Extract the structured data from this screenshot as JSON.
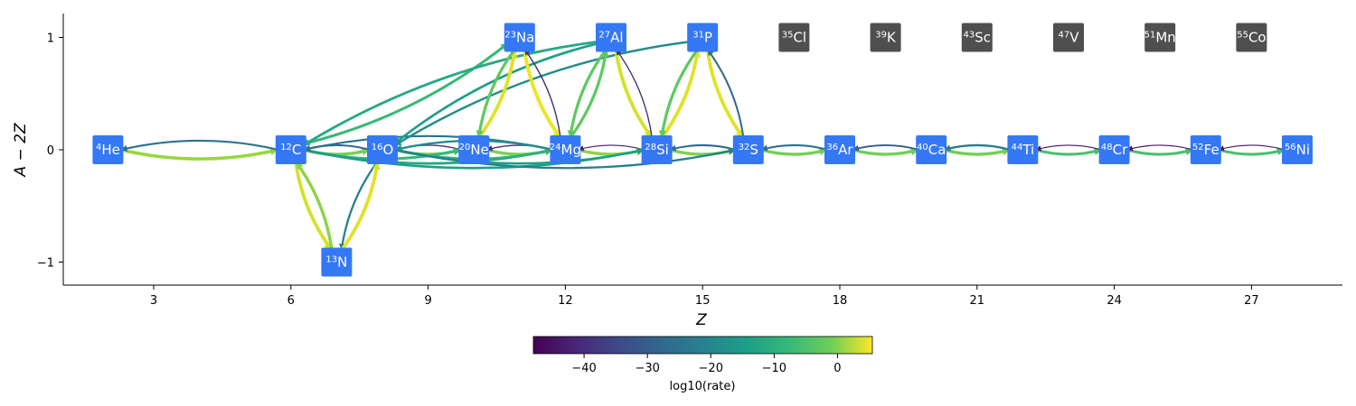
{
  "axes": {
    "xlabel": "Z",
    "ylabel": "A − 2Z",
    "xlim": [
      1.2,
      29
    ],
    "ylim": [
      -1.2,
      1.2
    ],
    "xticks": [
      "3",
      "6",
      "9",
      "12",
      "15",
      "18",
      "21",
      "24",
      "27"
    ],
    "yticks": [
      "1",
      "0",
      "−1"
    ]
  },
  "colorbar": {
    "label": "log10(rate)",
    "min": -48,
    "max": 5.5,
    "ticks": [
      "−40",
      "−30",
      "−20",
      "−10",
      "0"
    ],
    "colormap": "viridis"
  },
  "nodes": [
    {
      "id": "He4",
      "mass": "4",
      "symbol": "He",
      "Z": 2,
      "N_minus_Z": 0,
      "active": true
    },
    {
      "id": "C12",
      "mass": "12",
      "symbol": "C",
      "Z": 6,
      "N_minus_Z": 0,
      "active": true
    },
    {
      "id": "N13",
      "mass": "13",
      "symbol": "N",
      "Z": 7,
      "N_minus_Z": -1,
      "active": true
    },
    {
      "id": "O16",
      "mass": "16",
      "symbol": "O",
      "Z": 8,
      "N_minus_Z": 0,
      "active": true
    },
    {
      "id": "Ne20",
      "mass": "20",
      "symbol": "Ne",
      "Z": 10,
      "N_minus_Z": 0,
      "active": true
    },
    {
      "id": "Na23",
      "mass": "23",
      "symbol": "Na",
      "Z": 11,
      "N_minus_Z": 1,
      "active": true
    },
    {
      "id": "Mg24",
      "mass": "24",
      "symbol": "Mg",
      "Z": 12,
      "N_minus_Z": 0,
      "active": true
    },
    {
      "id": "Al27",
      "mass": "27",
      "symbol": "Al",
      "Z": 13,
      "N_minus_Z": 1,
      "active": true
    },
    {
      "id": "Si28",
      "mass": "28",
      "symbol": "Si",
      "Z": 14,
      "N_minus_Z": 0,
      "active": true
    },
    {
      "id": "P31",
      "mass": "31",
      "symbol": "P",
      "Z": 15,
      "N_minus_Z": 1,
      "active": true
    },
    {
      "id": "S32",
      "mass": "32",
      "symbol": "S",
      "Z": 16,
      "N_minus_Z": 0,
      "active": true
    },
    {
      "id": "Cl35",
      "mass": "35",
      "symbol": "Cl",
      "Z": 17,
      "N_minus_Z": 1,
      "active": false
    },
    {
      "id": "Ar36",
      "mass": "36",
      "symbol": "Ar",
      "Z": 18,
      "N_minus_Z": 0,
      "active": true
    },
    {
      "id": "K39",
      "mass": "39",
      "symbol": "K",
      "Z": 19,
      "N_minus_Z": 1,
      "active": false
    },
    {
      "id": "Ca40",
      "mass": "40",
      "symbol": "Ca",
      "Z": 20,
      "N_minus_Z": 0,
      "active": true
    },
    {
      "id": "Sc43",
      "mass": "43",
      "symbol": "Sc",
      "Z": 21,
      "N_minus_Z": 1,
      "active": false
    },
    {
      "id": "Ti44",
      "mass": "44",
      "symbol": "Ti",
      "Z": 22,
      "N_minus_Z": 0,
      "active": true
    },
    {
      "id": "V47",
      "mass": "47",
      "symbol": "V",
      "Z": 23,
      "N_minus_Z": 1,
      "active": false
    },
    {
      "id": "Cr48",
      "mass": "48",
      "symbol": "Cr",
      "Z": 24,
      "N_minus_Z": 0,
      "active": true
    },
    {
      "id": "Mn51",
      "mass": "51",
      "symbol": "Mn",
      "Z": 25,
      "N_minus_Z": 1,
      "active": false
    },
    {
      "id": "Fe52",
      "mass": "52",
      "symbol": "Fe",
      "Z": 26,
      "N_minus_Z": 0,
      "active": true
    },
    {
      "id": "Co55",
      "mass": "55",
      "symbol": "Co",
      "Z": 27,
      "N_minus_Z": 1,
      "active": false
    },
    {
      "id": "Ni56",
      "mass": "56",
      "symbol": "Ni",
      "Z": 28,
      "N_minus_Z": 0,
      "active": true
    }
  ],
  "edges": [
    {
      "from": "He4",
      "to": "C12",
      "rate": -3
    },
    {
      "from": "C12",
      "to": "He4",
      "rate": -28
    },
    {
      "from": "C12",
      "to": "O16",
      "rate": -6
    },
    {
      "from": "O16",
      "to": "C12",
      "rate": -30
    },
    {
      "from": "C12",
      "to": "N13",
      "rate": 2
    },
    {
      "from": "N13",
      "to": "C12",
      "rate": -4
    },
    {
      "from": "O16",
      "to": "N13",
      "rate": -25
    },
    {
      "from": "N13",
      "to": "O16",
      "rate": 3
    },
    {
      "from": "O16",
      "to": "Ne20",
      "rate": -6
    },
    {
      "from": "Ne20",
      "to": "O16",
      "rate": -40
    },
    {
      "from": "Ne20",
      "to": "Mg24",
      "rate": -5
    },
    {
      "from": "Mg24",
      "to": "Ne20",
      "rate": -42
    },
    {
      "from": "Mg24",
      "to": "Si28",
      "rate": -4
    },
    {
      "from": "Si28",
      "to": "Mg24",
      "rate": -44
    },
    {
      "from": "Si28",
      "to": "S32",
      "rate": -5
    },
    {
      "from": "S32",
      "to": "Si28",
      "rate": -30
    },
    {
      "from": "S32",
      "to": "Ar36",
      "rate": -6
    },
    {
      "from": "Ar36",
      "to": "S32",
      "rate": -28
    },
    {
      "from": "Ar36",
      "to": "Ca40",
      "rate": -6
    },
    {
      "from": "Ca40",
      "to": "Ar36",
      "rate": -32
    },
    {
      "from": "Ca40",
      "to": "Ti44",
      "rate": -6
    },
    {
      "from": "Ti44",
      "to": "Ca40",
      "rate": -25
    },
    {
      "from": "Ti44",
      "to": "Cr48",
      "rate": -10
    },
    {
      "from": "Cr48",
      "to": "Ti44",
      "rate": -45
    },
    {
      "from": "Cr48",
      "to": "Fe52",
      "rate": -10
    },
    {
      "from": "Fe52",
      "to": "Cr48",
      "rate": -45
    },
    {
      "from": "Fe52",
      "to": "Ni56",
      "rate": -10
    },
    {
      "from": "Ni56",
      "to": "Fe52",
      "rate": -45
    },
    {
      "from": "C12",
      "to": "Ne20",
      "rate": -12
    },
    {
      "from": "C12",
      "to": "Mg24",
      "rate": -16
    },
    {
      "from": "C12",
      "to": "Na23",
      "rate": -12
    },
    {
      "from": "C12",
      "to": "Si28",
      "rate": -18
    },
    {
      "from": "O16",
      "to": "Mg24",
      "rate": -14
    },
    {
      "from": "O16",
      "to": "Si28",
      "rate": -18
    },
    {
      "from": "O16",
      "to": "S32",
      "rate": -25
    },
    {
      "from": "Mg24",
      "to": "C12",
      "rate": -28
    },
    {
      "from": "Mg24",
      "to": "O16",
      "rate": -22
    },
    {
      "from": "Al27",
      "to": "C12",
      "rate": -16
    },
    {
      "from": "Al27",
      "to": "O16",
      "rate": -18
    },
    {
      "from": "P31",
      "to": "O16",
      "rate": -22
    },
    {
      "from": "Ne20",
      "to": "Na23",
      "rate": 3
    },
    {
      "from": "Na23",
      "to": "Ne20",
      "rate": -8
    },
    {
      "from": "Na23",
      "to": "Mg24",
      "rate": 4
    },
    {
      "from": "Mg24",
      "to": "Na23",
      "rate": -40
    },
    {
      "from": "Mg24",
      "to": "Al27",
      "rate": -8
    },
    {
      "from": "Al27",
      "to": "Mg24",
      "rate": -8
    },
    {
      "from": "Al27",
      "to": "Si28",
      "rate": 2
    },
    {
      "from": "Si28",
      "to": "Al27",
      "rate": -42
    },
    {
      "from": "Si28",
      "to": "P31",
      "rate": 3
    },
    {
      "from": "P31",
      "to": "Si28",
      "rate": -8
    },
    {
      "from": "P31",
      "to": "S32",
      "rate": 3
    },
    {
      "from": "S32",
      "to": "P31",
      "rate": -30
    }
  ]
}
